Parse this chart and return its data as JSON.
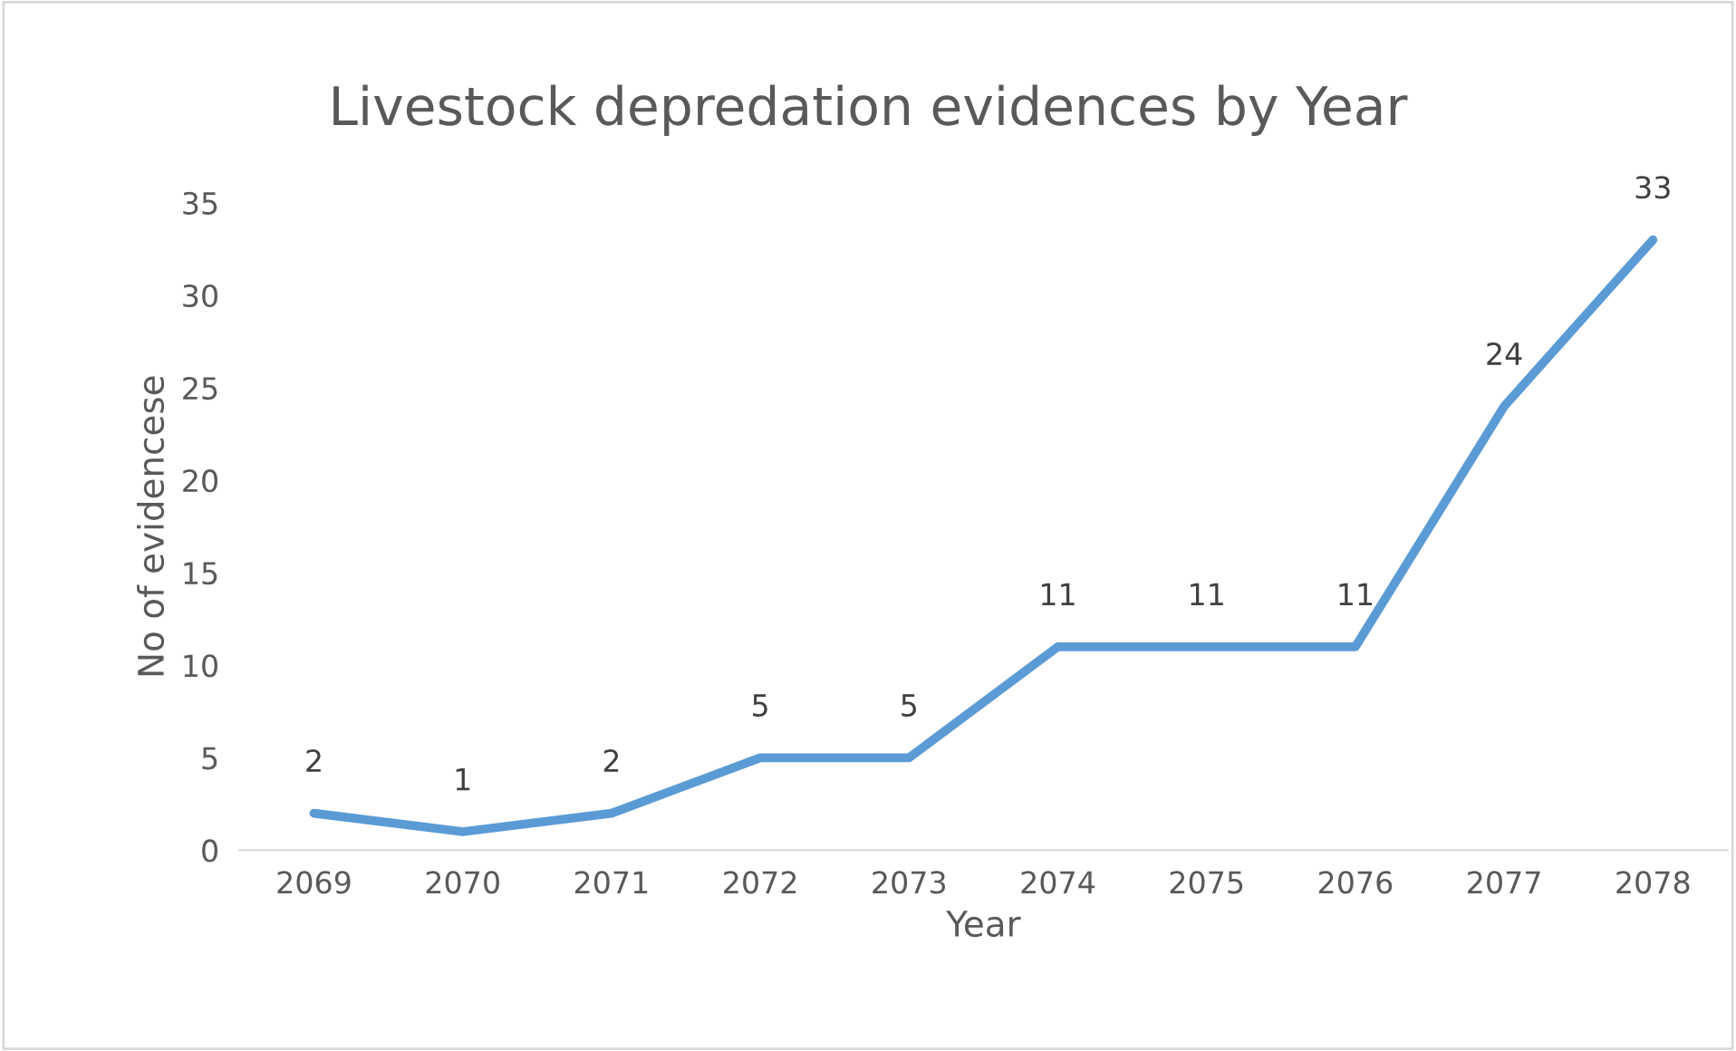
{
  "chart_data": {
    "type": "line",
    "title": "Livestock depredation evidences by Year",
    "xlabel": "Year",
    "ylabel": "No of evidencese",
    "categories": [
      "2069",
      "2070",
      "2071",
      "2072",
      "2073",
      "2074",
      "2075",
      "2076",
      "2077",
      "2078"
    ],
    "series": [
      {
        "color": "#5b9bd5",
        "values": [
          2,
          1,
          2,
          5,
          5,
          11,
          11,
          11,
          24,
          33
        ]
      }
    ],
    "ylim": [
      0,
      35
    ],
    "yticks": [
      0,
      5,
      10,
      15,
      20,
      25,
      30,
      35
    ],
    "grid": false,
    "marker": "none",
    "line_style": "solid",
    "data_labels": true
  }
}
